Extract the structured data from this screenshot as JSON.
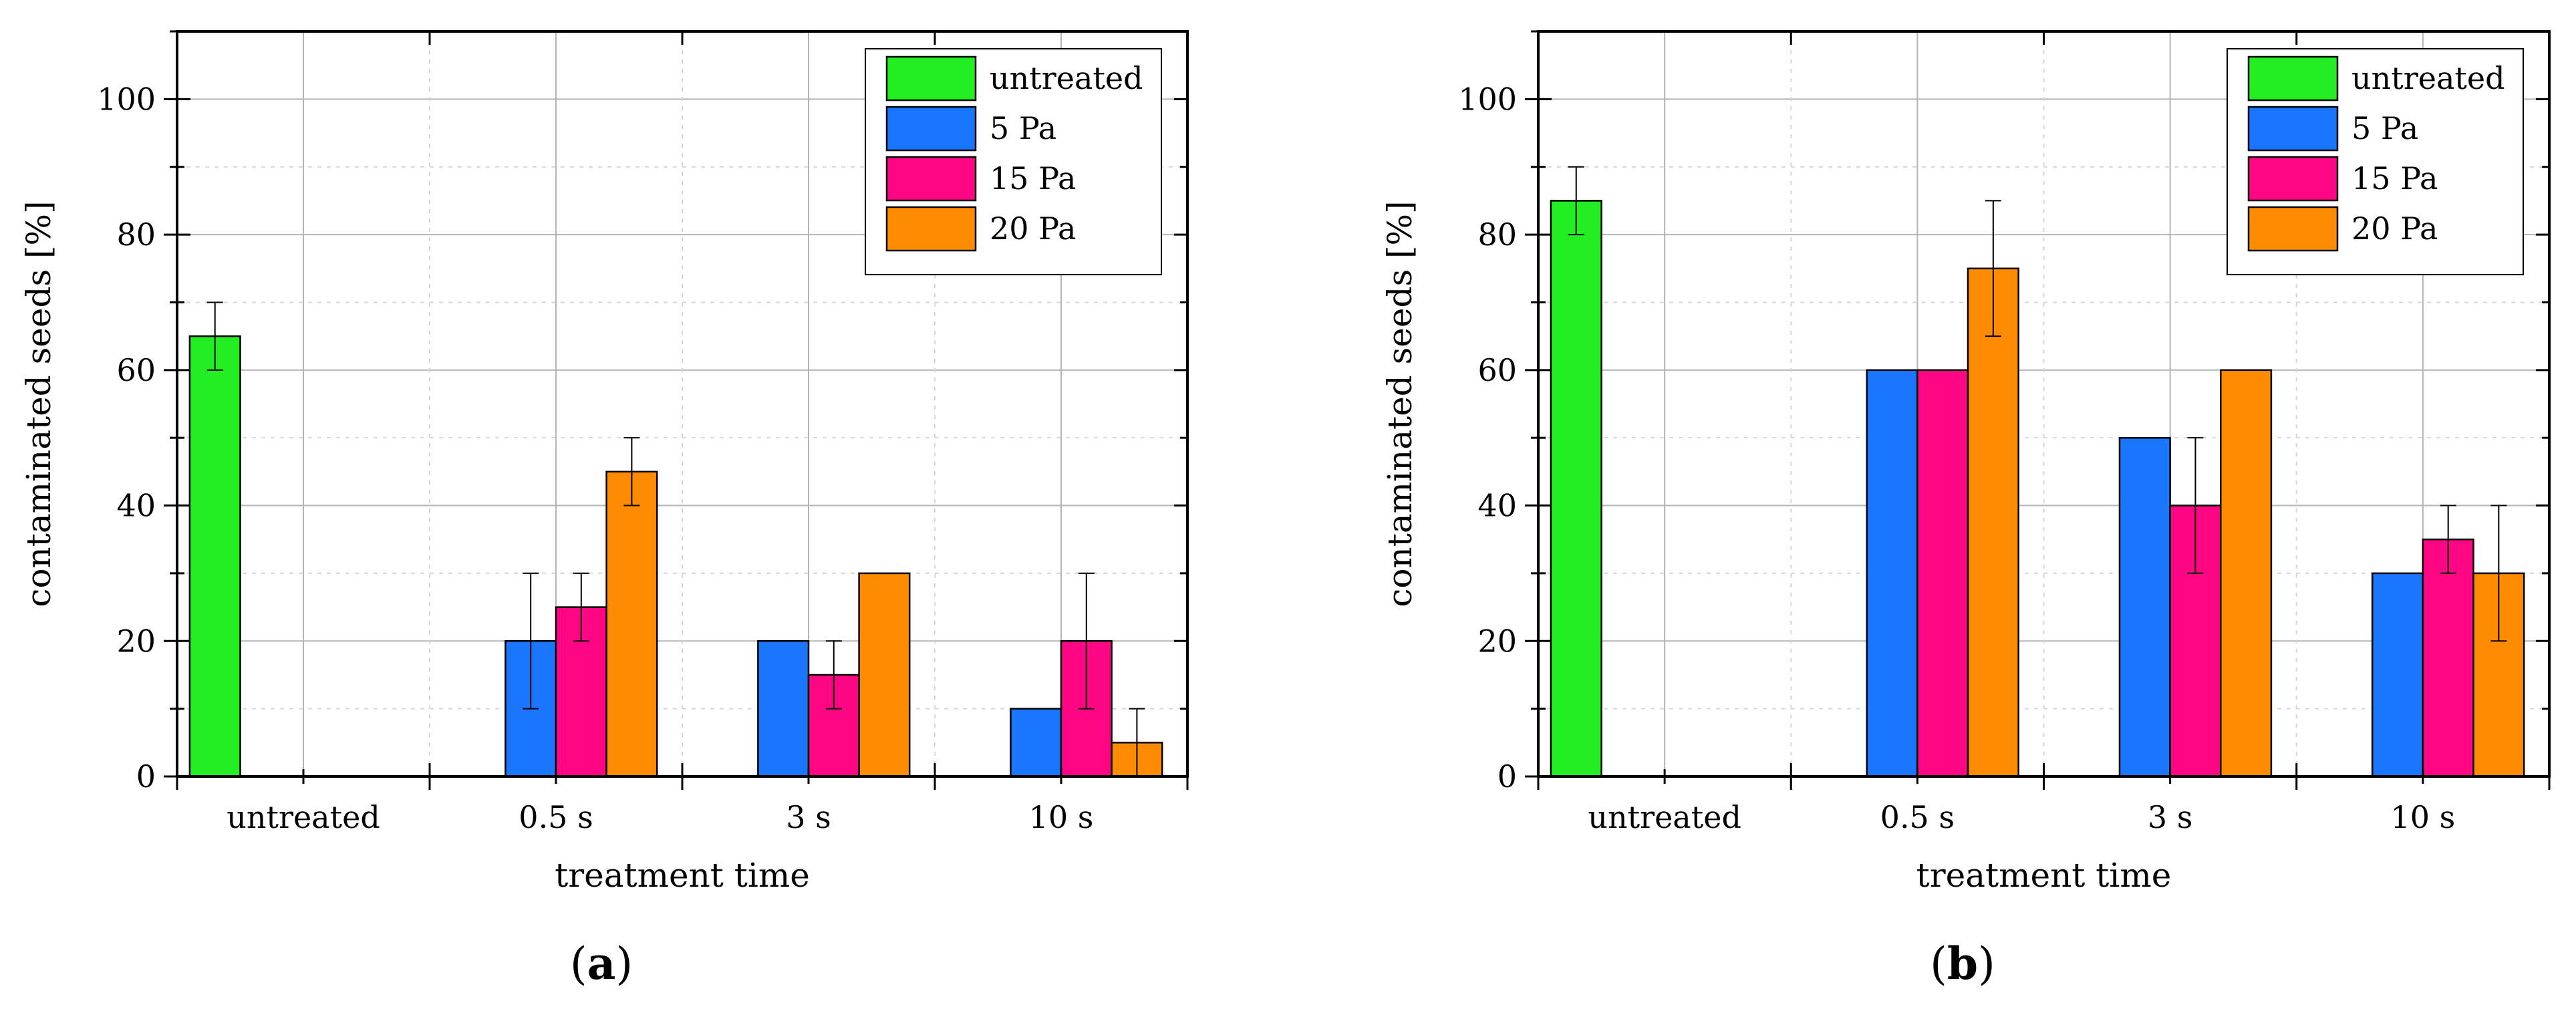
{
  "figure": {
    "panel_labels": [
      {
        "open": "(",
        "letter": "a",
        "close": ")"
      },
      {
        "open": "(",
        "letter": "b",
        "close": ")"
      }
    ]
  },
  "colors": {
    "untreated": "#22ee22",
    "5 Pa": "#1a75ff",
    "15 Pa": "#ff0784",
    "20 Pa": "#ff8c00"
  },
  "chart_data": [
    {
      "type": "bar",
      "title": "",
      "panel": "a",
      "xlabel": "treatment time",
      "ylabel": "contaminated seeds [%]",
      "ylim": [
        0,
        110
      ],
      "yticks": [
        0,
        20,
        40,
        60,
        80,
        100
      ],
      "categories": [
        "untreated",
        "0.5 s",
        "3 s",
        "10 s"
      ],
      "legend_position": "top-right",
      "grid": true,
      "series": [
        {
          "name": "untreated",
          "values": [
            65,
            null,
            null,
            null
          ],
          "errors": [
            5,
            null,
            null,
            null
          ]
        },
        {
          "name": "5 Pa",
          "values": [
            null,
            20,
            20,
            10
          ],
          "errors": [
            null,
            10,
            0,
            0
          ]
        },
        {
          "name": "15 Pa",
          "values": [
            null,
            25,
            15,
            20
          ],
          "errors": [
            null,
            5,
            5,
            10
          ]
        },
        {
          "name": "20 Pa",
          "values": [
            null,
            45,
            30,
            5
          ],
          "errors": [
            null,
            5,
            0,
            5
          ]
        }
      ]
    },
    {
      "type": "bar",
      "title": "",
      "panel": "b",
      "xlabel": "treatment time",
      "ylabel": "contaminated seeds [%]",
      "ylim": [
        0,
        110
      ],
      "yticks": [
        0,
        20,
        40,
        60,
        80,
        100
      ],
      "categories": [
        "untreated",
        "0.5 s",
        "3 s",
        "10 s"
      ],
      "legend_position": "top-right",
      "grid": true,
      "series": [
        {
          "name": "untreated",
          "values": [
            85,
            null,
            null,
            null
          ],
          "errors": [
            5,
            null,
            null,
            null
          ]
        },
        {
          "name": "5 Pa",
          "values": [
            null,
            60,
            50,
            30
          ],
          "errors": [
            null,
            0,
            0,
            0
          ]
        },
        {
          "name": "15 Pa",
          "values": [
            null,
            60,
            40,
            35
          ],
          "errors": [
            null,
            0,
            10,
            5
          ]
        },
        {
          "name": "20 Pa",
          "values": [
            null,
            75,
            60,
            30
          ],
          "errors": [
            null,
            10,
            0,
            10
          ]
        }
      ]
    }
  ]
}
